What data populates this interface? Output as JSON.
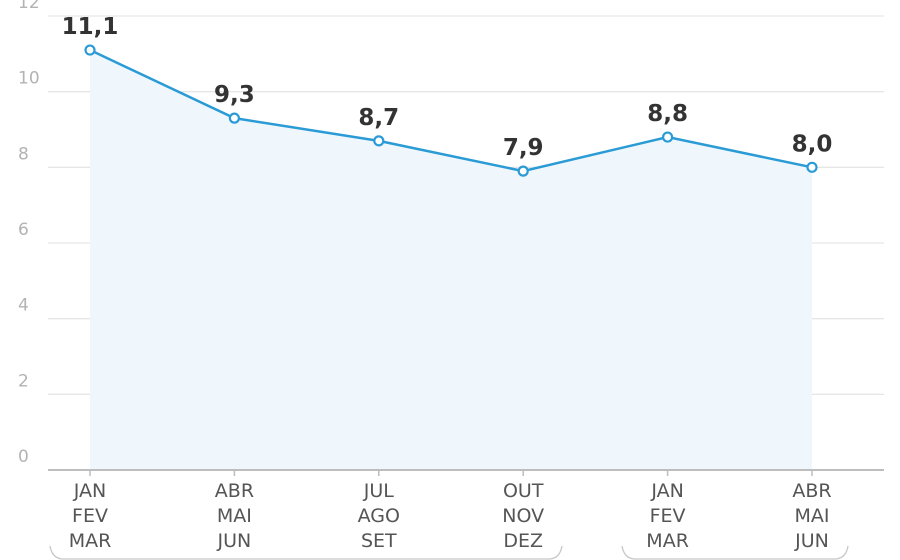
{
  "chart_data": {
    "type": "line",
    "title": "",
    "xlabel": "",
    "ylabel": "",
    "categories": [
      [
        "JAN",
        "FEV",
        "MAR"
      ],
      [
        "ABR",
        "MAI",
        "JUN"
      ],
      [
        "JUL",
        "AGO",
        "SET"
      ],
      [
        "OUT",
        "NOV",
        "DEZ"
      ],
      [
        "JAN",
        "FEV",
        "MAR"
      ],
      [
        "ABR",
        "MAI",
        "JUN"
      ]
    ],
    "values": [
      11.1,
      9.3,
      8.7,
      7.9,
      8.8,
      8.0
    ],
    "data_labels": [
      "11,1",
      "9,3",
      "8,7",
      "7,9",
      "8,8",
      "8,0"
    ],
    "yticks": [
      0,
      2,
      4,
      6,
      8,
      10,
      12
    ],
    "ylim": [
      0,
      12
    ],
    "grid": true,
    "legend": "none",
    "colors": {
      "line": "#2b9bd6",
      "area": "#eff7fc",
      "grid": "#e6e6e6",
      "axis": "#bdbdbd"
    }
  }
}
